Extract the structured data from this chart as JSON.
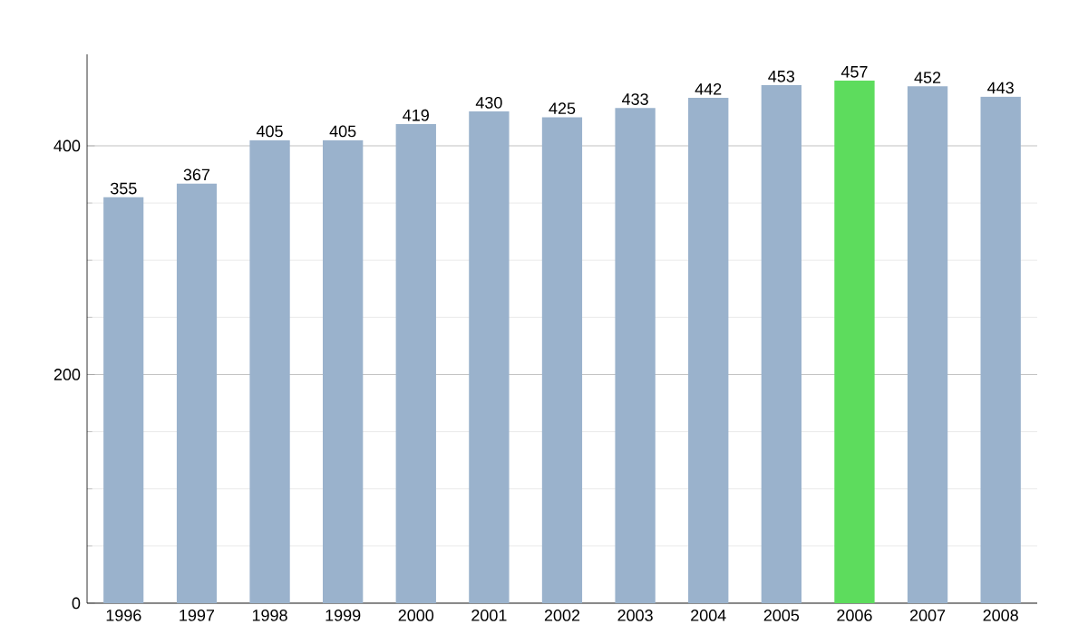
{
  "chart_data": {
    "type": "bar",
    "categories": [
      "1996",
      "1997",
      "1998",
      "1999",
      "2000",
      "2001",
      "2002",
      "2003",
      "2004",
      "2005",
      "2006",
      "2007",
      "2008"
    ],
    "values": [
      355,
      367,
      405,
      405,
      419,
      430,
      425,
      433,
      442,
      453,
      457,
      452,
      443
    ],
    "colors": [
      "#9ab2cc",
      "#9ab2cc",
      "#9ab2cc",
      "#9ab2cc",
      "#9ab2cc",
      "#9ab2cc",
      "#9ab2cc",
      "#9ab2cc",
      "#9ab2cc",
      "#9ab2cc",
      "#5ddc5d",
      "#9ab2cc",
      "#9ab2cc"
    ],
    "ylim": [
      0,
      480
    ],
    "yticks": [
      0,
      200,
      400
    ],
    "grid": "y",
    "data_labels": true
  }
}
